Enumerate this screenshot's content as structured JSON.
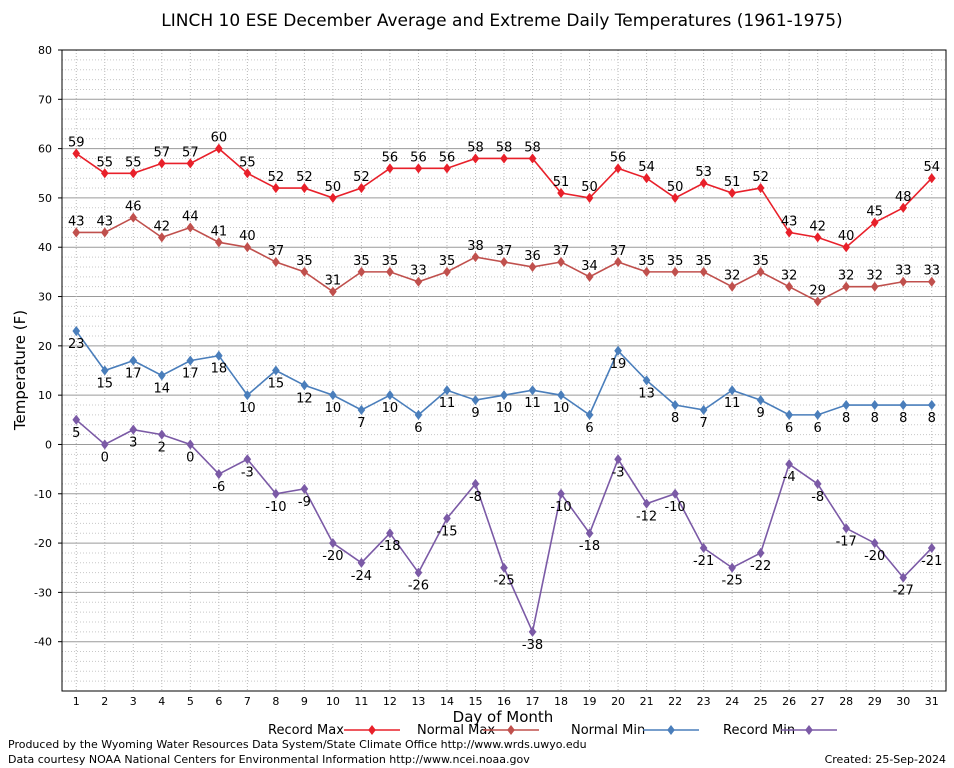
{
  "chart_data": {
    "type": "line",
    "title": "LINCH 10 ESE December Average and Extreme Daily Temperatures (1961-1975)",
    "xlabel": "Day of Month",
    "ylabel": "Temperature (F)",
    "ylim": [
      -50,
      80
    ],
    "yticks": [
      80,
      70,
      60,
      50,
      40,
      30,
      20,
      10,
      0,
      -10,
      -20,
      -30,
      -40
    ],
    "x": [
      1,
      2,
      3,
      4,
      5,
      6,
      7,
      8,
      9,
      10,
      11,
      12,
      13,
      14,
      15,
      16,
      17,
      18,
      19,
      20,
      21,
      22,
      23,
      24,
      25,
      26,
      27,
      28,
      29,
      30,
      31
    ],
    "grid": true,
    "series": [
      {
        "name": "Record Max",
        "color": "#e8202a",
        "values": [
          59,
          55,
          55,
          57,
          57,
          60,
          55,
          52,
          52,
          50,
          52,
          56,
          56,
          56,
          58,
          58,
          58,
          51,
          50,
          56,
          54,
          50,
          53,
          51,
          52,
          43,
          42,
          40,
          45,
          48,
          54
        ],
        "label_pos": "above"
      },
      {
        "name": "Normal Max",
        "color": "#c0504d",
        "values": [
          43,
          43,
          46,
          42,
          44,
          41,
          40,
          37,
          35,
          31,
          35,
          35,
          33,
          35,
          38,
          37,
          36,
          37,
          34,
          37,
          35,
          35,
          35,
          32,
          35,
          32,
          29,
          32,
          32,
          33,
          33
        ],
        "label_pos": "above"
      },
      {
        "name": "Normal Min",
        "color": "#4a7ebb",
        "values": [
          23,
          15,
          17,
          14,
          17,
          18,
          10,
          15,
          12,
          10,
          7,
          10,
          6,
          11,
          9,
          10,
          11,
          10,
          6,
          19,
          13,
          8,
          7,
          11,
          9,
          6,
          6,
          8,
          8,
          8,
          8
        ],
        "label_pos": "below"
      },
      {
        "name": "Record Min",
        "color": "#7b5aa6",
        "values": [
          5,
          0,
          3,
          2,
          0,
          -6,
          -3,
          -10,
          -9,
          -20,
          -24,
          -18,
          -26,
          -15,
          -8,
          -25,
          -38,
          -10,
          -18,
          -3,
          -12,
          -10,
          -21,
          -25,
          -22,
          -4,
          -8,
          -17,
          -20,
          -27,
          -21
        ],
        "label_pos": "below"
      }
    ]
  },
  "footer": {
    "line1": "Produced by the Wyoming Water Resources Data System/State Climate Office http://www.wrds.uwyo.edu",
    "line2": "Data courtesy NOAA National Centers for Environmental Information http://www.ncei.noaa.gov",
    "created": "Created:  25-Sep-2024"
  }
}
